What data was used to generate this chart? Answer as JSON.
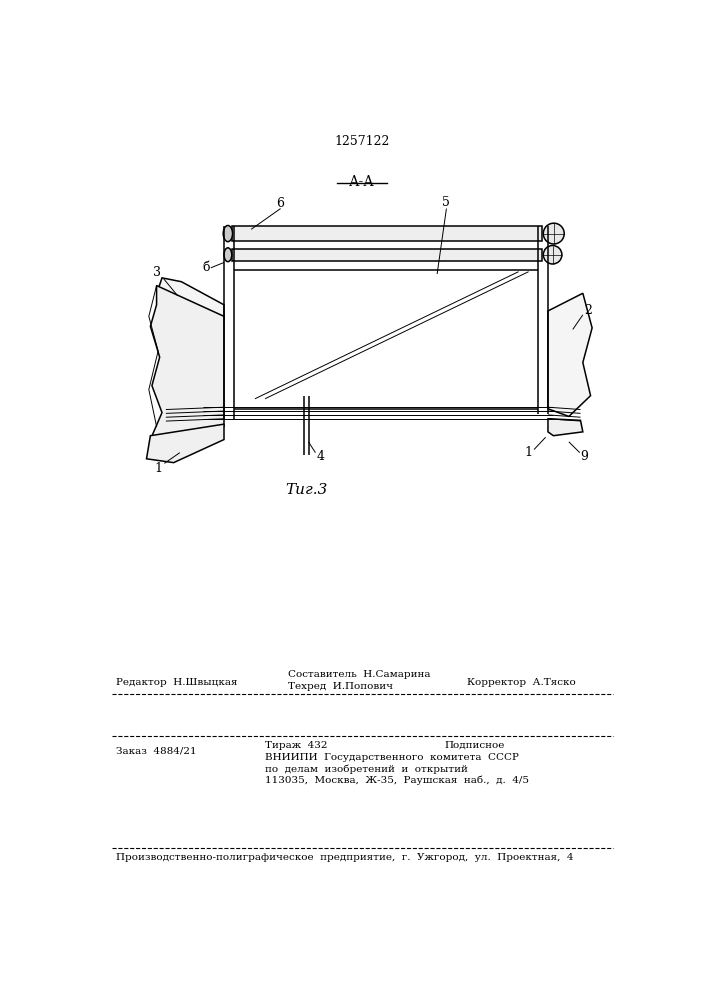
{
  "patent_number": "1257122",
  "fig_label": "Τиг.3",
  "section_label": "А-А",
  "bg_color": "#ffffff",
  "line_color": "#000000",
  "footer_line1_left": "Редактор  Н.Швыцкая",
  "footer_line1_center_top": "Составитель  Н.Самарина",
  "footer_line1_center_bot": "Техред  И.Попович",
  "footer_line1_right": "Корректор  А.Тяско",
  "footer_line2_left": "Заказ  4884/21",
  "footer_line2_center": "Тираж  432",
  "footer_line2_right": "Подписное",
  "footer_line3": "ВНИИПИ  Государственного  комитета  СССР",
  "footer_line4": "по  делам  изобретений  и  открытий",
  "footer_line5": "113035,  Москва,  Ж-35,  Раушская  наб.,  д.  4/5",
  "footer_last": "Производственно-полиграфическое  предприятие,  г.  Ужгород,  ул.  Проектная,  4"
}
